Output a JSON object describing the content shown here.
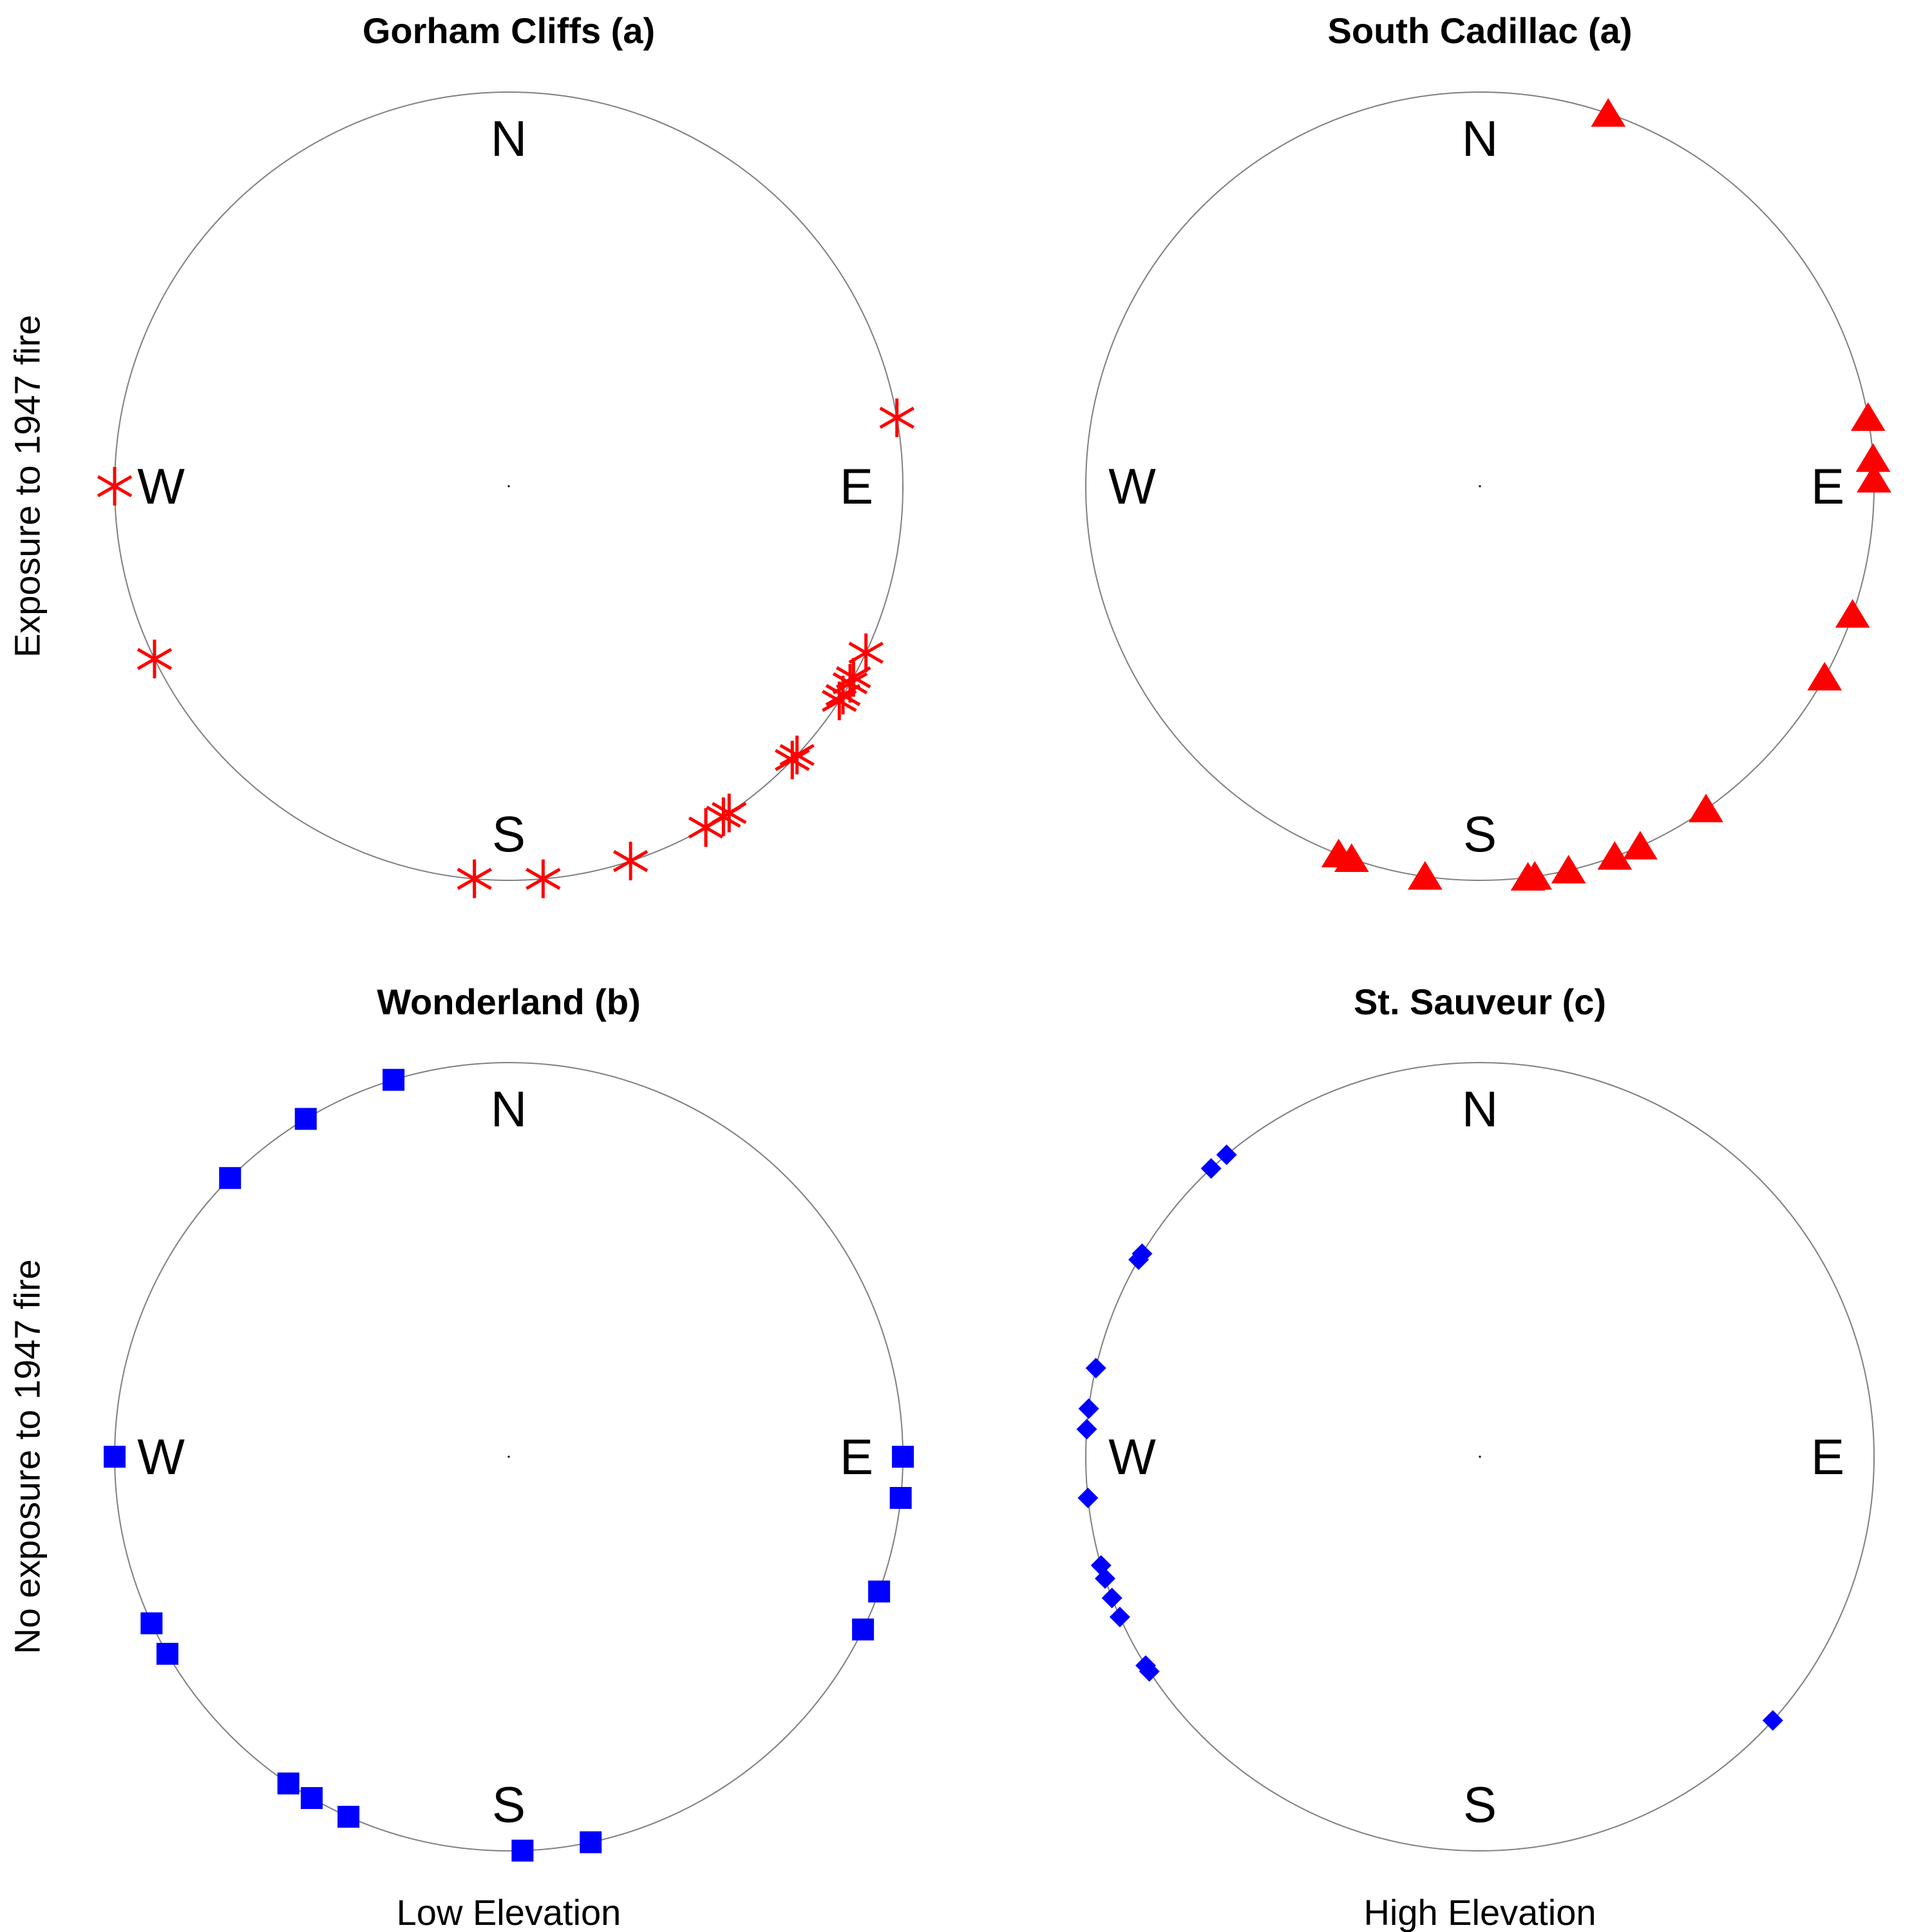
{
  "figure": {
    "row_labels": [
      "Exposure to 1947 fire",
      "No exposure to 1947 fire"
    ],
    "col_labels": [
      "Low Elevation",
      "High Elevation"
    ]
  },
  "chart_data": [
    {
      "type": "scatter",
      "coordinate_system": "polar-compass",
      "title": "Gorham Cliffs (a)",
      "directions": [
        "N",
        "E",
        "S",
        "W"
      ],
      "grid": false,
      "marker": "asterisk",
      "color": "#ff0000",
      "series": [
        {
          "values": [
            {
              "angle_deg": 80,
              "r": 1
            },
            {
              "angle_deg": 115,
              "r": 1
            },
            {
              "angle_deg": 119,
              "r": 1
            },
            {
              "angle_deg": 120,
              "r": 1
            },
            {
              "angle_deg": 122,
              "r": 1
            },
            {
              "angle_deg": 123,
              "r": 1
            },
            {
              "angle_deg": 133,
              "r": 1
            },
            {
              "angle_deg": 134,
              "r": 1
            },
            {
              "angle_deg": 146,
              "r": 1
            },
            {
              "angle_deg": 147,
              "r": 1
            },
            {
              "angle_deg": 150,
              "r": 1
            },
            {
              "angle_deg": 162,
              "r": 1
            },
            {
              "angle_deg": 175,
              "r": 1
            },
            {
              "angle_deg": 185,
              "r": 1
            },
            {
              "angle_deg": 244,
              "r": 1
            },
            {
              "angle_deg": 270,
              "r": 1
            }
          ]
        }
      ]
    },
    {
      "type": "scatter",
      "coordinate_system": "polar-compass",
      "title": "South Cadillac (a)",
      "directions": [
        "N",
        "E",
        "S",
        "W"
      ],
      "grid": false,
      "marker": "triangle",
      "color": "#ff0000",
      "series": [
        {
          "values": [
            {
              "angle_deg": 19,
              "r": 1
            },
            {
              "angle_deg": 80,
              "r": 1
            },
            {
              "angle_deg": 86,
              "r": 1
            },
            {
              "angle_deg": 89,
              "r": 1
            },
            {
              "angle_deg": 109,
              "r": 1
            },
            {
              "angle_deg": 119,
              "r": 1
            },
            {
              "angle_deg": 145,
              "r": 1
            },
            {
              "angle_deg": 156,
              "r": 1
            },
            {
              "angle_deg": 160,
              "r": 1
            },
            {
              "angle_deg": 167,
              "r": 1
            },
            {
              "angle_deg": 172,
              "r": 1
            },
            {
              "angle_deg": 173,
              "r": 1
            },
            {
              "angle_deg": 188,
              "r": 1
            },
            {
              "angle_deg": 199,
              "r": 1
            },
            {
              "angle_deg": 201,
              "r": 1
            }
          ]
        }
      ]
    },
    {
      "type": "scatter",
      "coordinate_system": "polar-compass",
      "title": "Wonderland (b)",
      "directions": [
        "N",
        "E",
        "S",
        "W"
      ],
      "grid": false,
      "marker": "square",
      "color": "#0000ff",
      "series": [
        {
          "values": [
            {
              "angle_deg": 90,
              "r": 1
            },
            {
              "angle_deg": 96,
              "r": 1
            },
            {
              "angle_deg": 110,
              "r": 1
            },
            {
              "angle_deg": 116,
              "r": 1
            },
            {
              "angle_deg": 168,
              "r": 1
            },
            {
              "angle_deg": 178,
              "r": 1
            },
            {
              "angle_deg": 204,
              "r": 1
            },
            {
              "angle_deg": 214,
              "r": 1
            },
            {
              "angle_deg": 210,
              "r": 1
            },
            {
              "angle_deg": 240,
              "r": 1
            },
            {
              "angle_deg": 245,
              "r": 1
            },
            {
              "angle_deg": 270,
              "r": 1
            },
            {
              "angle_deg": 315,
              "r": 1
            },
            {
              "angle_deg": 329,
              "r": 1
            },
            {
              "angle_deg": 343,
              "r": 1
            }
          ]
        }
      ]
    },
    {
      "type": "scatter",
      "coordinate_system": "polar-compass",
      "title": "St. Sauveur (c)",
      "directions": [
        "N",
        "E",
        "S",
        "W"
      ],
      "grid": false,
      "marker": "diamond",
      "color": "#0000ff",
      "series": [
        {
          "values": [
            {
              "angle_deg": 132,
              "r": 1
            },
            {
              "angle_deg": 237,
              "r": 1
            },
            {
              "angle_deg": 238,
              "r": 1
            },
            {
              "angle_deg": 246,
              "r": 1
            },
            {
              "angle_deg": 249,
              "r": 1
            },
            {
              "angle_deg": 252,
              "r": 1
            },
            {
              "angle_deg": 254,
              "r": 1
            },
            {
              "angle_deg": 264,
              "r": 1
            },
            {
              "angle_deg": 274,
              "r": 1
            },
            {
              "angle_deg": 277,
              "r": 1
            },
            {
              "angle_deg": 283,
              "r": 1
            },
            {
              "angle_deg": 300,
              "r": 1
            },
            {
              "angle_deg": 301,
              "r": 1
            },
            {
              "angle_deg": 317,
              "r": 1
            },
            {
              "angle_deg": 320,
              "r": 1
            }
          ]
        }
      ]
    }
  ]
}
